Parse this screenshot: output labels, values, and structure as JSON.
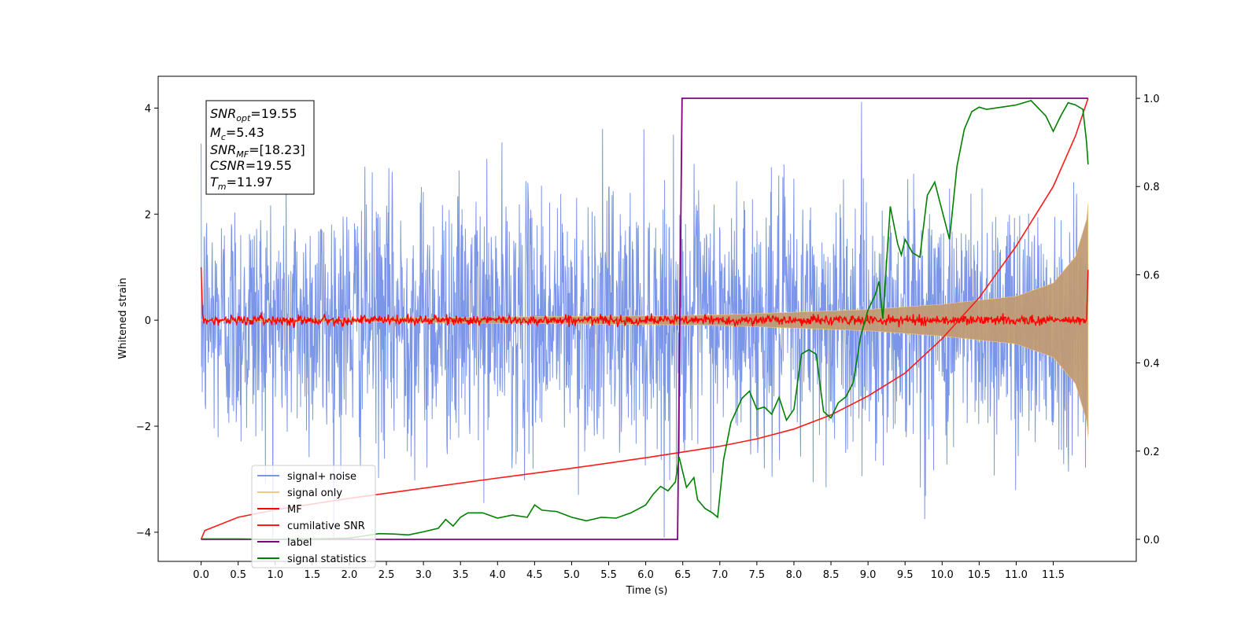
{
  "chart_data": {
    "type": "line",
    "xlabel": "Time (s)",
    "ylabel": "Whitened strain",
    "xlim": [
      -0.58,
      12.62
    ],
    "ylim": [
      -4.55,
      4.6
    ],
    "y2lim": [
      -0.05,
      1.05
    ],
    "x_ticks": [
      "0.0",
      "0.5",
      "1.0",
      "1.5",
      "2.0",
      "2.5",
      "3.0",
      "3.5",
      "4.0",
      "4.5",
      "5.0",
      "5.5",
      "6.0",
      "6.5",
      "7.0",
      "7.5",
      "8.0",
      "8.5",
      "9.0",
      "9.5",
      "10.0",
      "10.5",
      "11.0",
      "11.5"
    ],
    "y_ticks": [
      "4",
      "2",
      "0",
      "−2",
      "−4"
    ],
    "y2_ticks": [
      "1.0",
      "0.8",
      "0.6",
      "0.4",
      "0.2",
      "0.0"
    ],
    "annotation": {
      "line1": "=19.55",
      "line1_sym": "SNR",
      "line1_sub": "opt",
      "line2": "=5.43",
      "line2_sym": "M",
      "line2_sub": "c",
      "line3": "=[18.23]",
      "line3_sym": "SNR",
      "line3_sub": "MF",
      "line4": "=19.55",
      "line4_sym": "CSNR",
      "line5": "=11.97",
      "line5_sym": "T",
      "line5_sub": "m"
    },
    "legend": [
      "signal+ noise",
      "signal only",
      "MF",
      "cumilative SNR",
      "label",
      "signal statistics"
    ],
    "legend_placement": "lower-left",
    "colors": {
      "signal_noise": "#7b96e8",
      "signal_only": "#f5c97a",
      "signal_only_fill": "#c19b74",
      "mf": "#ff0000",
      "cumulative_snr": "#ff1a1a",
      "label": "#800080",
      "signal_statistics": "#008000"
    },
    "series": [
      {
        "name": "signal+ noise",
        "axis": "left",
        "description_envelope": {
          "t_start": 0.0,
          "t_end": 11.97,
          "typical_abs": 1.2,
          "max": 4.15,
          "min": -4.1
        }
      },
      {
        "name": "signal only",
        "axis": "left",
        "envelope_points": [
          [
            0.0,
            0.01
          ],
          [
            2.0,
            0.03
          ],
          [
            4.0,
            0.06
          ],
          [
            6.0,
            0.08
          ],
          [
            7.0,
            0.1
          ],
          [
            8.0,
            0.15
          ],
          [
            9.0,
            0.2
          ],
          [
            10.0,
            0.3
          ],
          [
            11.0,
            0.45
          ],
          [
            11.5,
            0.7
          ],
          [
            11.8,
            1.2
          ],
          [
            11.95,
            1.9
          ],
          [
            11.97,
            2.2
          ]
        ]
      },
      {
        "name": "MF",
        "axis": "left",
        "points": [
          [
            0.0,
            1.0
          ],
          [
            0.02,
            0.1
          ],
          [
            11.95,
            0.0
          ],
          [
            11.97,
            0.95
          ]
        ]
      },
      {
        "name": "cumilative SNR",
        "axis": "right",
        "points": [
          [
            0.0,
            0.0
          ],
          [
            0.05,
            0.02
          ],
          [
            0.5,
            0.05
          ],
          [
            1.0,
            0.067
          ],
          [
            2.0,
            0.093
          ],
          [
            3.0,
            0.116
          ],
          [
            4.0,
            0.139
          ],
          [
            5.0,
            0.161
          ],
          [
            6.0,
            0.185
          ],
          [
            6.5,
            0.198
          ],
          [
            7.0,
            0.211
          ],
          [
            7.5,
            0.228
          ],
          [
            8.0,
            0.25
          ],
          [
            8.5,
            0.282
          ],
          [
            9.0,
            0.325
          ],
          [
            9.5,
            0.377
          ],
          [
            10.0,
            0.455
          ],
          [
            10.5,
            0.548
          ],
          [
            11.0,
            0.665
          ],
          [
            11.5,
            0.8
          ],
          [
            11.8,
            0.915
          ],
          [
            11.97,
            1.0
          ]
        ]
      },
      {
        "name": "label",
        "axis": "right",
        "points": [
          [
            0.0,
            0.0
          ],
          [
            6.43,
            0.0
          ],
          [
            6.49,
            1.0
          ],
          [
            11.97,
            1.0
          ]
        ]
      },
      {
        "name": "signal statistics",
        "axis": "right",
        "points": [
          [
            0.0,
            0.001
          ],
          [
            0.5,
            0.001
          ],
          [
            1.0,
            0.0
          ],
          [
            1.5,
            0.001
          ],
          [
            2.0,
            0.003
          ],
          [
            2.2,
            0.008
          ],
          [
            2.4,
            0.013
          ],
          [
            2.6,
            0.012
          ],
          [
            2.8,
            0.01
          ],
          [
            3.0,
            0.017
          ],
          [
            3.2,
            0.025
          ],
          [
            3.3,
            0.045
          ],
          [
            3.4,
            0.03
          ],
          [
            3.5,
            0.05
          ],
          [
            3.6,
            0.06
          ],
          [
            3.7,
            0.06
          ],
          [
            3.8,
            0.06
          ],
          [
            4.0,
            0.048
          ],
          [
            4.2,
            0.055
          ],
          [
            4.4,
            0.05
          ],
          [
            4.5,
            0.078
          ],
          [
            4.6,
            0.066
          ],
          [
            4.8,
            0.063
          ],
          [
            5.0,
            0.05
          ],
          [
            5.2,
            0.042
          ],
          [
            5.4,
            0.05
          ],
          [
            5.6,
            0.048
          ],
          [
            5.8,
            0.06
          ],
          [
            6.0,
            0.078
          ],
          [
            6.1,
            0.102
          ],
          [
            6.2,
            0.12
          ],
          [
            6.3,
            0.11
          ],
          [
            6.4,
            0.13
          ],
          [
            6.45,
            0.187
          ],
          [
            6.55,
            0.118
          ],
          [
            6.65,
            0.14
          ],
          [
            6.7,
            0.09
          ],
          [
            6.8,
            0.07
          ],
          [
            6.9,
            0.06
          ],
          [
            6.97,
            0.05
          ],
          [
            7.05,
            0.18
          ],
          [
            7.15,
            0.265
          ],
          [
            7.3,
            0.32
          ],
          [
            7.4,
            0.336
          ],
          [
            7.5,
            0.295
          ],
          [
            7.6,
            0.3
          ],
          [
            7.7,
            0.284
          ],
          [
            7.8,
            0.322
          ],
          [
            7.9,
            0.27
          ],
          [
            8.0,
            0.295
          ],
          [
            8.1,
            0.42
          ],
          [
            8.2,
            0.43
          ],
          [
            8.3,
            0.42
          ],
          [
            8.4,
            0.29
          ],
          [
            8.5,
            0.275
          ],
          [
            8.6,
            0.31
          ],
          [
            8.7,
            0.323
          ],
          [
            8.8,
            0.355
          ],
          [
            8.9,
            0.46
          ],
          [
            9.0,
            0.52
          ],
          [
            9.1,
            0.555
          ],
          [
            9.15,
            0.585
          ],
          [
            9.2,
            0.5
          ],
          [
            9.3,
            0.755
          ],
          [
            9.4,
            0.67
          ],
          [
            9.45,
            0.645
          ],
          [
            9.5,
            0.68
          ],
          [
            9.6,
            0.65
          ],
          [
            9.7,
            0.64
          ],
          [
            9.8,
            0.78
          ],
          [
            9.9,
            0.81
          ],
          [
            10.0,
            0.745
          ],
          [
            10.1,
            0.68
          ],
          [
            10.2,
            0.845
          ],
          [
            10.3,
            0.93
          ],
          [
            10.4,
            0.97
          ],
          [
            10.5,
            0.98
          ],
          [
            10.6,
            0.975
          ],
          [
            10.8,
            0.98
          ],
          [
            11.0,
            0.985
          ],
          [
            11.2,
            0.995
          ],
          [
            11.4,
            0.96
          ],
          [
            11.5,
            0.925
          ],
          [
            11.6,
            0.96
          ],
          [
            11.7,
            0.99
          ],
          [
            11.8,
            0.985
          ],
          [
            11.9,
            0.975
          ],
          [
            11.95,
            0.9
          ],
          [
            11.97,
            0.85
          ]
        ]
      }
    ]
  }
}
